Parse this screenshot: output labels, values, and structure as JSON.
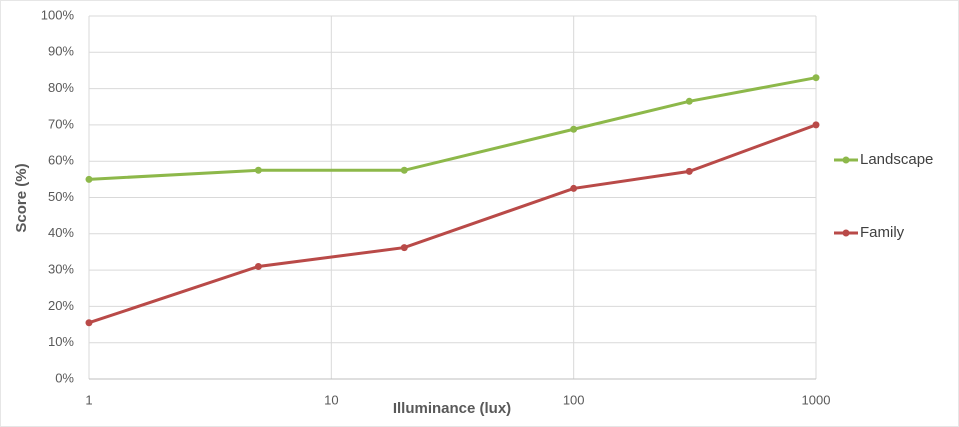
{
  "chart_data": {
    "type": "line",
    "x_label": "Illuminance (lux)",
    "y_label": "Score (%)",
    "x": [
      1,
      5,
      20,
      100,
      300,
      1000
    ],
    "series": [
      {
        "name": "Landscape",
        "color": "#8db84a",
        "values": [
          55,
          57.5,
          57.5,
          68.8,
          76.5,
          83
        ]
      },
      {
        "name": "Family",
        "color": "#b94a48",
        "values": [
          15.5,
          31,
          36.2,
          52.5,
          57.2,
          70
        ]
      }
    ],
    "xscale": "log",
    "xlim": [
      1,
      1000
    ],
    "xticks": [
      1,
      10,
      100,
      1000
    ],
    "ylim": [
      0,
      100
    ],
    "yticks": [
      {
        "value": 0,
        "label": "0%"
      },
      {
        "value": 10,
        "label": "10%"
      },
      {
        "value": 20,
        "label": "20%"
      },
      {
        "value": 30,
        "label": "30%"
      },
      {
        "value": 40,
        "label": "40%"
      },
      {
        "value": 50,
        "label": "50%"
      },
      {
        "value": 60,
        "label": "60%"
      },
      {
        "value": 70,
        "label": "70%"
      },
      {
        "value": 80,
        "label": "80%"
      },
      {
        "value": 90,
        "label": "90%"
      },
      {
        "value": 100,
        "label": "100%"
      }
    ],
    "grid": true,
    "legend": "right"
  }
}
